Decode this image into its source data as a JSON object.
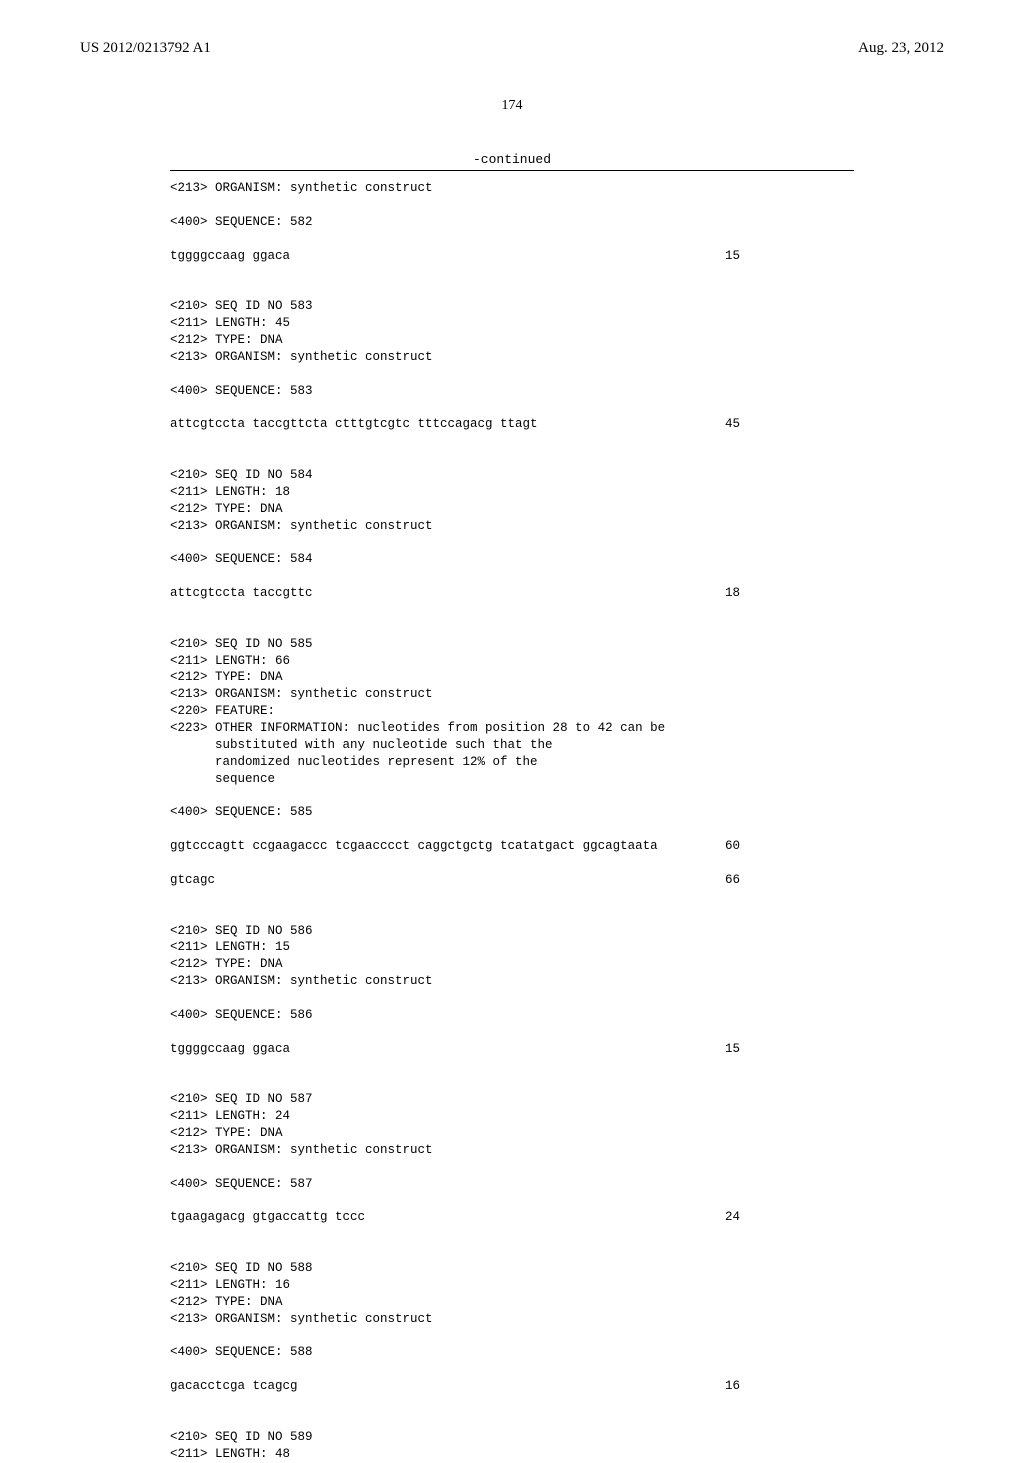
{
  "header": {
    "left": "US 2012/0213792 A1",
    "right": "Aug. 23, 2012"
  },
  "page_number": "174",
  "continued": "-continued",
  "entries": [
    {
      "type": "line",
      "text": "<213> ORGANISM: synthetic construct"
    },
    {
      "type": "blank"
    },
    {
      "type": "line",
      "text": "<400> SEQUENCE: 582"
    },
    {
      "type": "blank"
    },
    {
      "type": "seq",
      "seq": "tggggccaag ggaca",
      "num": "15"
    },
    {
      "type": "blank"
    },
    {
      "type": "blank"
    },
    {
      "type": "line",
      "text": "<210> SEQ ID NO 583"
    },
    {
      "type": "line",
      "text": "<211> LENGTH: 45"
    },
    {
      "type": "line",
      "text": "<212> TYPE: DNA"
    },
    {
      "type": "line",
      "text": "<213> ORGANISM: synthetic construct"
    },
    {
      "type": "blank"
    },
    {
      "type": "line",
      "text": "<400> SEQUENCE: 583"
    },
    {
      "type": "blank"
    },
    {
      "type": "seq",
      "seq": "attcgtccta taccgttcta ctttgtcgtc tttccagacg ttagt",
      "num": "45"
    },
    {
      "type": "blank"
    },
    {
      "type": "blank"
    },
    {
      "type": "line",
      "text": "<210> SEQ ID NO 584"
    },
    {
      "type": "line",
      "text": "<211> LENGTH: 18"
    },
    {
      "type": "line",
      "text": "<212> TYPE: DNA"
    },
    {
      "type": "line",
      "text": "<213> ORGANISM: synthetic construct"
    },
    {
      "type": "blank"
    },
    {
      "type": "line",
      "text": "<400> SEQUENCE: 584"
    },
    {
      "type": "blank"
    },
    {
      "type": "seq",
      "seq": "attcgtccta taccgttc",
      "num": "18"
    },
    {
      "type": "blank"
    },
    {
      "type": "blank"
    },
    {
      "type": "line",
      "text": "<210> SEQ ID NO 585"
    },
    {
      "type": "line",
      "text": "<211> LENGTH: 66"
    },
    {
      "type": "line",
      "text": "<212> TYPE: DNA"
    },
    {
      "type": "line",
      "text": "<213> ORGANISM: synthetic construct"
    },
    {
      "type": "line",
      "text": "<220> FEATURE:"
    },
    {
      "type": "line",
      "text": "<223> OTHER INFORMATION: nucleotides from position 28 to 42 can be"
    },
    {
      "type": "line",
      "text": "      substituted with any nucleotide such that the"
    },
    {
      "type": "line",
      "text": "      randomized nucleotides represent 12% of the"
    },
    {
      "type": "line",
      "text": "      sequence"
    },
    {
      "type": "blank"
    },
    {
      "type": "line",
      "text": "<400> SEQUENCE: 585"
    },
    {
      "type": "blank"
    },
    {
      "type": "seq",
      "seq": "ggtcccagtt ccgaagaccc tcgaacccct caggctgctg tcatatgact ggcagtaata",
      "num": "60"
    },
    {
      "type": "blank"
    },
    {
      "type": "seq",
      "seq": "gtcagc",
      "num": "66"
    },
    {
      "type": "blank"
    },
    {
      "type": "blank"
    },
    {
      "type": "line",
      "text": "<210> SEQ ID NO 586"
    },
    {
      "type": "line",
      "text": "<211> LENGTH: 15"
    },
    {
      "type": "line",
      "text": "<212> TYPE: DNA"
    },
    {
      "type": "line",
      "text": "<213> ORGANISM: synthetic construct"
    },
    {
      "type": "blank"
    },
    {
      "type": "line",
      "text": "<400> SEQUENCE: 586"
    },
    {
      "type": "blank"
    },
    {
      "type": "seq",
      "seq": "tggggccaag ggaca",
      "num": "15"
    },
    {
      "type": "blank"
    },
    {
      "type": "blank"
    },
    {
      "type": "line",
      "text": "<210> SEQ ID NO 587"
    },
    {
      "type": "line",
      "text": "<211> LENGTH: 24"
    },
    {
      "type": "line",
      "text": "<212> TYPE: DNA"
    },
    {
      "type": "line",
      "text": "<213> ORGANISM: synthetic construct"
    },
    {
      "type": "blank"
    },
    {
      "type": "line",
      "text": "<400> SEQUENCE: 587"
    },
    {
      "type": "blank"
    },
    {
      "type": "seq",
      "seq": "tgaagagacg gtgaccattg tccc",
      "num": "24"
    },
    {
      "type": "blank"
    },
    {
      "type": "blank"
    },
    {
      "type": "line",
      "text": "<210> SEQ ID NO 588"
    },
    {
      "type": "line",
      "text": "<211> LENGTH: 16"
    },
    {
      "type": "line",
      "text": "<212> TYPE: DNA"
    },
    {
      "type": "line",
      "text": "<213> ORGANISM: synthetic construct"
    },
    {
      "type": "blank"
    },
    {
      "type": "line",
      "text": "<400> SEQUENCE: 588"
    },
    {
      "type": "blank"
    },
    {
      "type": "seq",
      "seq": "gacacctcga tcagcg",
      "num": "16"
    },
    {
      "type": "blank"
    },
    {
      "type": "blank"
    },
    {
      "type": "line",
      "text": "<210> SEQ ID NO 589"
    },
    {
      "type": "line",
      "text": "<211> LENGTH: 48"
    }
  ]
}
